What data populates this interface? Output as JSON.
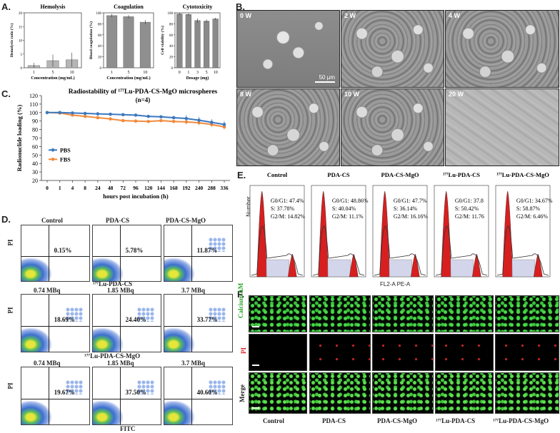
{
  "panels": {
    "A": "A.",
    "B": "B.",
    "C": "C.",
    "D": "D.",
    "E": "E.",
    "F": "F."
  },
  "chart_data": [
    {
      "type": "bar",
      "title": "Hemolysis",
      "ylabel": "Hemolysis ratio (%)",
      "xlabel": "Concentration (mg/mL)",
      "categories": [
        "1",
        "5",
        "10"
      ],
      "values": [
        0.8,
        2.6,
        2.9
      ],
      "errors": [
        1.0,
        2.2,
        2.6
      ],
      "ylim": [
        0,
        20
      ],
      "yticks": [
        "0",
        "5",
        "10",
        "15",
        "20"
      ],
      "color": "#b5b5b5"
    },
    {
      "type": "bar",
      "title": "Coagulation",
      "ylabel": "Blood coagulation (%)",
      "xlabel": "Concentration (mg/mL)",
      "categories": [
        "1",
        "5",
        "10"
      ],
      "values": [
        95,
        93,
        83
      ],
      "errors": [
        3,
        3,
        4
      ],
      "ylim": [
        0,
        100
      ],
      "yticks": [
        "0",
        "20",
        "40",
        "60",
        "80",
        "100"
      ],
      "color": "#8f8f8f"
    },
    {
      "type": "bar",
      "title": "Cytotoxicity",
      "ylabel": "Cell viability (%)",
      "xlabel": "Dosage (mg)",
      "categories": [
        "0",
        "1",
        "3",
        "5",
        "10"
      ],
      "values": [
        98,
        97,
        86,
        85,
        89
      ],
      "errors": [
        2,
        2,
        4,
        3,
        2
      ],
      "ylim": [
        0,
        100
      ],
      "yticks": [
        "0",
        "20",
        "40",
        "60",
        "80",
        "100"
      ],
      "color": "#8a8a8a"
    },
    {
      "type": "line",
      "title": "Radiostability of ¹⁷⁷Lu-PDA-CS-MgO microspheres",
      "subtitle": "(n=4)",
      "xlabel": "hours post incubation (h)",
      "ylabel": "Radionuclide loading (%)",
      "x": [
        "0",
        "1",
        "4",
        "8",
        "24",
        "48",
        "72",
        "96",
        "120",
        "144",
        "168",
        "192",
        "240",
        "288",
        "336"
      ],
      "ylim": [
        20,
        120
      ],
      "yticks": [
        "20",
        "30",
        "40",
        "50",
        "60",
        "70",
        "80",
        "90",
        "100",
        "110",
        "120"
      ],
      "series": [
        {
          "name": "FBS",
          "color": "#f28a3c",
          "values": [
            100,
            99.5,
            97,
            95.5,
            94,
            92.5,
            90.5,
            90,
            89.5,
            90.5,
            89.5,
            89,
            88,
            86,
            83
          ]
        },
        {
          "name": "PBS",
          "color": "#3c78c0",
          "values": [
            100,
            100,
            99.5,
            99,
            98.5,
            98,
            97.5,
            97,
            95.5,
            95,
            94,
            93,
            91,
            88.5,
            86
          ]
        }
      ]
    }
  ],
  "sem": {
    "labels": [
      "0 W",
      "2 W",
      "4 W",
      "8 W",
      "10 W",
      "20 W"
    ],
    "scalebar": "50 μm"
  },
  "cellcycle": {
    "ylabel": "Number",
    "xlabel": "FL2-A PE-A",
    "groups": [
      {
        "title": "Control",
        "g0": "G0/G1: 47.4%",
        "s": "S: 37.78%",
        "g2": "G2/M: 14.82%"
      },
      {
        "title": "PDA-CS",
        "g0": "G0/G1: 48.86%",
        "s": "S: 40.04%",
        "g2": "G2/M: 11.1%"
      },
      {
        "title": "PDA-CS-MgO",
        "g0": "G0/G1: 47.7%",
        "s": "S: 36.14%",
        "g2": "G2/M: 16.16%"
      },
      {
        "title": "¹⁷⁷Lu-PDA-CS",
        "g0": "G0/G1: 37.8",
        "s": "S: 50.42%",
        "g2": "G2/M: 11.76"
      },
      {
        "title": "¹⁷⁷Lu-PDA-CS-MgO",
        "g0": "G0/G1: 34.67%",
        "s": "S: 58.87%",
        "g2": "G2/M: 6.46%"
      }
    ]
  },
  "flow": {
    "ylabel": "PI",
    "xlabel": "FITC",
    "row1": {
      "titles": [
        "Control",
        "PDA-CS",
        "PDA-CS-MgO"
      ],
      "pcts": [
        "0.15%",
        "5.78%",
        "11.87%"
      ]
    },
    "row2": {
      "group": "¹⁷⁷Lu-PDA-CS",
      "doses": [
        "0.74 MBq",
        "1.85 MBq",
        "3.7 MBq"
      ],
      "pcts": [
        "18.69%",
        "24.40%",
        "33.77%"
      ]
    },
    "row3": {
      "group": "¹⁷⁷Lu-PDA-CS-MgO",
      "doses": [
        "0.74 MBq",
        "1.85 MBq",
        "3.7 MBq"
      ],
      "pcts": [
        "19.67%",
        "37.50%",
        "40.60%"
      ]
    }
  },
  "livedead": {
    "rows": [
      "Calcium AM",
      "PI",
      "Merge"
    ],
    "cols": [
      "Control",
      "PDA-CS",
      "PDA-CS-MgO",
      "¹⁷⁷Lu-PDA-CS",
      "¹⁷⁷Lu-PDA-CS-MgO"
    ]
  }
}
